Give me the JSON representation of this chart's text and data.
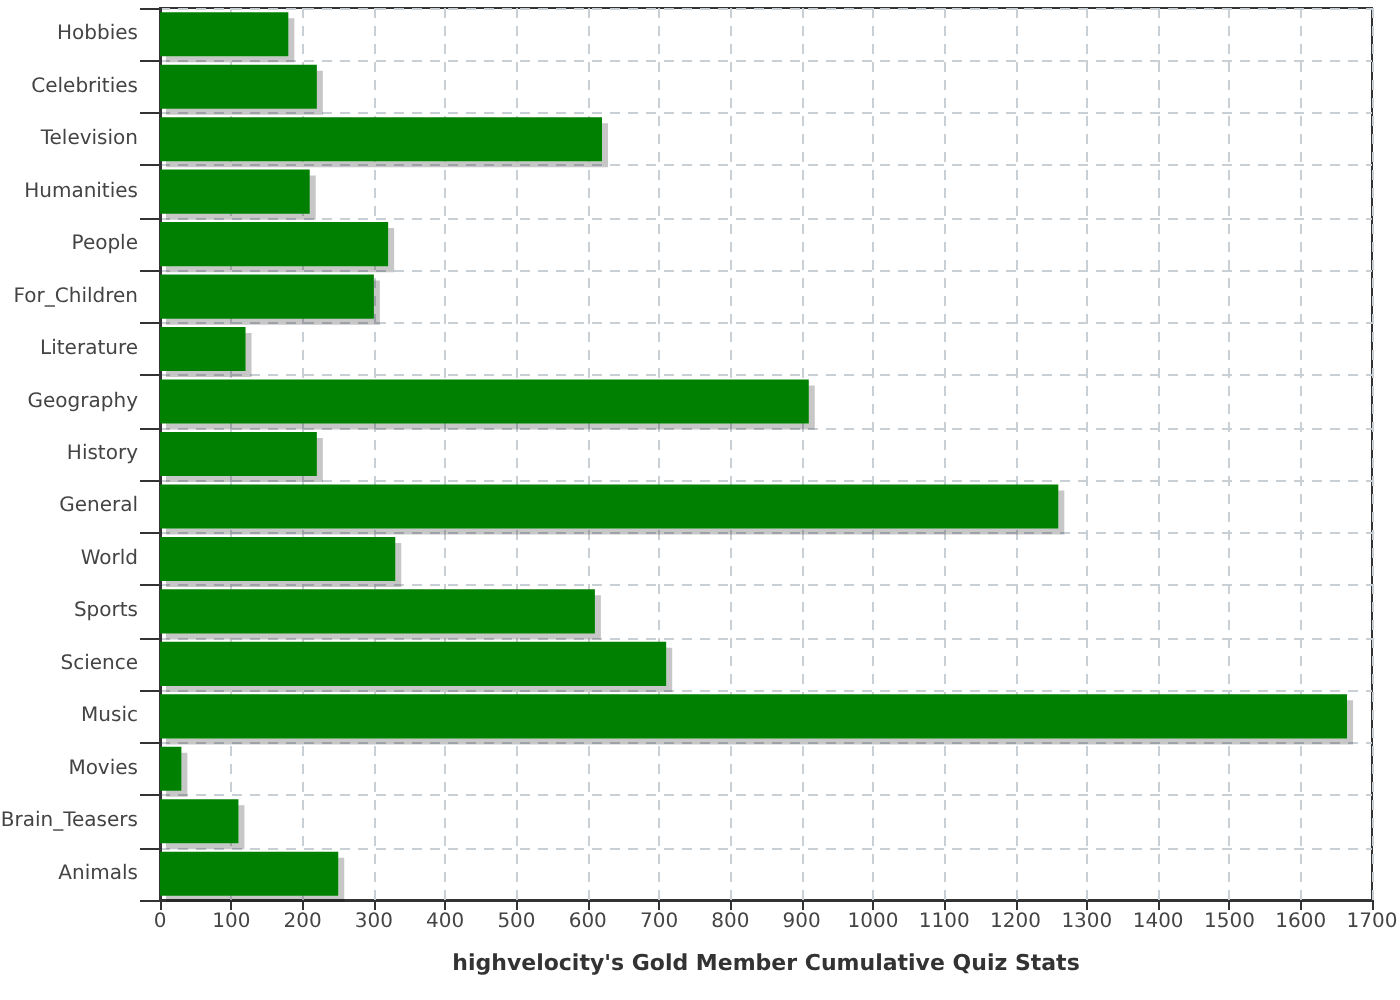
{
  "chart_data": {
    "type": "bar",
    "orientation": "horizontal",
    "xlabel": "highvelocity's Gold Member Cumulative Quiz Stats",
    "categories": [
      "Hobbies",
      "Celebrities",
      "Television",
      "Humanities",
      "People",
      "For_Children",
      "Literature",
      "Geography",
      "History",
      "General",
      "World",
      "Sports",
      "Science",
      "Music",
      "Movies",
      "Brain_Teasers",
      "Animals"
    ],
    "values": [
      180,
      220,
      620,
      210,
      320,
      300,
      120,
      910,
      220,
      1260,
      330,
      610,
      710,
      1665,
      30,
      110,
      250
    ],
    "color": "#008000",
    "xlim": [
      0,
      1700
    ],
    "xticks": [
      0,
      100,
      200,
      300,
      400,
      500,
      600,
      700,
      800,
      900,
      1000,
      1100,
      1200,
      1300,
      1400,
      1500,
      1600,
      1700
    ],
    "grid": true
  }
}
